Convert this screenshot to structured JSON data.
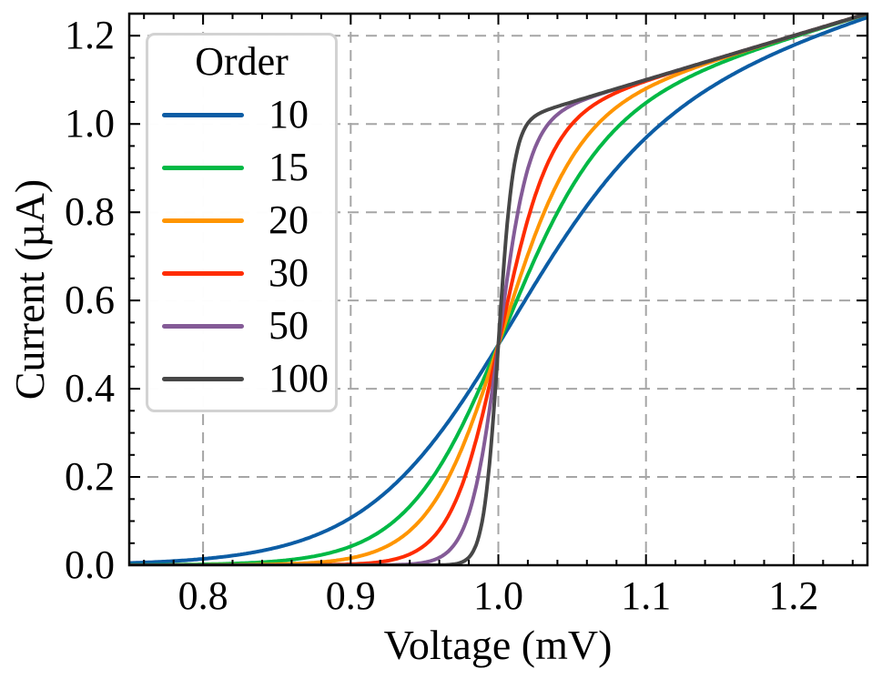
{
  "chart_data": {
    "type": "line",
    "title": "",
    "xlabel": "Voltage (mV)",
    "ylabel": "Current (µA)",
    "xlim": [
      0.75,
      1.25
    ],
    "ylim": [
      0,
      1.25
    ],
    "x_ticks": {
      "values": [
        0.8,
        0.9,
        1.0,
        1.1,
        1.2
      ],
      "labels": [
        "0.8",
        "0.9",
        "1.0",
        "1.1",
        "1.2"
      ]
    },
    "y_ticks": {
      "values": [
        0,
        0.2,
        0.4,
        0.6,
        0.8,
        1.0,
        1.2
      ],
      "labels": [
        "0.0",
        "0.2",
        "0.4",
        "0.6",
        "0.8",
        "1.0",
        "1.2"
      ]
    },
    "x_minor_step": 0.02,
    "y_minor_step": 0.05,
    "grid": {
      "visible": true,
      "style": "dashed",
      "color": "#a6a6a6",
      "dash": [
        12,
        8
      ],
      "width": 2
    },
    "spine_color": "#000000",
    "tick_direction": "in",
    "ticks_all_sides": true,
    "line_width": 4,
    "legend": {
      "title": "Order",
      "position": "upper left"
    },
    "model": "I(V) = V * (1 + tanh(order*(V-1))) / 2",
    "series": [
      {
        "name": "10",
        "order": 10,
        "color": "#0C5DA5",
        "points": [
          [
            0.75,
            0.005
          ],
          [
            0.775,
            0.0085
          ],
          [
            0.8,
            0.0144
          ],
          [
            0.825,
            0.0242
          ],
          [
            0.85,
            0.0403
          ],
          [
            0.875,
            0.0664
          ],
          [
            0.9,
            0.1073
          ],
          [
            0.925,
            0.1688
          ],
          [
            0.95,
            0.2555
          ],
          [
            0.975,
            0.3681
          ],
          [
            1.0,
            0.5
          ],
          [
            1.025,
            0.638
          ],
          [
            1.05,
            0.7676
          ],
          [
            1.075,
            0.8789
          ],
          [
            1.1,
            0.9689
          ],
          [
            1.125,
            1.0397
          ],
          [
            1.15,
            1.0954
          ],
          [
            1.175,
            1.1406
          ],
          [
            1.2,
            1.1784
          ],
          [
            1.225,
            1.2115
          ],
          [
            1.25,
            1.2416
          ]
        ]
      },
      {
        "name": "15",
        "order": 15,
        "color": "#00B945",
        "points": [
          [
            0.75,
            0.0005
          ],
          [
            0.8,
            0.002
          ],
          [
            0.825,
            0.0044
          ],
          [
            0.85,
            0.0094
          ],
          [
            0.875,
            0.0201
          ],
          [
            0.9,
            0.0427
          ],
          [
            0.925,
            0.0882
          ],
          [
            0.95,
            0.1733
          ],
          [
            0.975,
            0.3128
          ],
          [
            1.0,
            0.5
          ],
          [
            1.025,
            0.6962
          ],
          [
            1.05,
            0.8584
          ],
          [
            1.075,
            0.9725
          ],
          [
            1.1,
            1.0478
          ],
          [
            1.125,
            1.0991
          ],
          [
            1.15,
            1.1374
          ],
          [
            1.175,
            1.1688
          ],
          [
            1.2,
            1.1971
          ],
          [
            1.225,
            1.2237
          ],
          [
            1.25,
            1.2491
          ]
        ]
      },
      {
        "name": "20",
        "order": 20,
        "color": "#FF9500",
        "points": [
          [
            0.75,
            0.0
          ],
          [
            0.8,
            0.0003
          ],
          [
            0.85,
            0.0021
          ],
          [
            0.875,
            0.0059
          ],
          [
            0.9,
            0.0162
          ],
          [
            0.925,
            0.0439
          ],
          [
            0.95,
            0.1132
          ],
          [
            0.975,
            0.2622
          ],
          [
            1.0,
            0.5
          ],
          [
            1.025,
            0.7493
          ],
          [
            1.05,
            0.9248
          ],
          [
            1.075,
            1.024
          ],
          [
            1.1,
            1.08
          ],
          [
            1.125,
            1.1175
          ],
          [
            1.15,
            1.1472
          ],
          [
            1.175,
            1.1739
          ],
          [
            1.2,
            1.1996
          ],
          [
            1.25,
            1.25
          ]
        ]
      },
      {
        "name": "30",
        "order": 30,
        "color": "#FF2C00",
        "points": [
          [
            0.75,
            0.0
          ],
          [
            0.85,
            0.0002
          ],
          [
            0.875,
            0.0006
          ],
          [
            0.9,
            0.0022
          ],
          [
            0.9125,
            0.0049
          ],
          [
            0.925,
            0.0102
          ],
          [
            0.9375,
            0.0216
          ],
          [
            0.95,
            0.0451
          ],
          [
            0.9625,
            0.0918
          ],
          [
            0.975,
            0.1779
          ],
          [
            0.9875,
            0.3168
          ],
          [
            1.0,
            0.5
          ],
          [
            1.0125,
            0.6877
          ],
          [
            1.025,
            0.838
          ],
          [
            1.0375,
            0.9386
          ],
          [
            1.05,
            1.0002
          ],
          [
            1.0625,
            1.0381
          ],
          [
            1.075,
            1.0632
          ],
          [
            1.1,
            1.0973
          ],
          [
            1.15,
            1.1499
          ],
          [
            1.2,
            1.2
          ],
          [
            1.25,
            1.25
          ]
        ]
      },
      {
        "name": "50",
        "order": 50,
        "color": "#845B97",
        "points": [
          [
            0.75,
            0.0
          ],
          [
            0.9,
            0.0001
          ],
          [
            0.92,
            0.0003
          ],
          [
            0.93,
            0.0008
          ],
          [
            0.94,
            0.0023
          ],
          [
            0.95,
            0.0064
          ],
          [
            0.96,
            0.0173
          ],
          [
            0.97,
            0.046
          ],
          [
            0.98,
            0.1168
          ],
          [
            0.99,
            0.2663
          ],
          [
            1.0,
            0.5
          ],
          [
            1.01,
            0.7384
          ],
          [
            1.02,
            0.8984
          ],
          [
            1.03,
            0.9811
          ],
          [
            1.04,
            1.0213
          ],
          [
            1.05,
            1.043
          ],
          [
            1.06,
            1.0574
          ],
          [
            1.08,
            1.0796
          ],
          [
            1.1,
            1.1
          ],
          [
            1.15,
            1.15
          ],
          [
            1.2,
            1.2
          ],
          [
            1.25,
            1.25
          ]
        ]
      },
      {
        "name": "100",
        "order": 100,
        "color": "#474747",
        "points": [
          [
            0.75,
            0.0
          ],
          [
            0.94,
            0.0
          ],
          [
            0.96,
            0.0003
          ],
          [
            0.965,
            0.0009
          ],
          [
            0.97,
            0.0024
          ],
          [
            0.975,
            0.0065
          ],
          [
            0.98,
            0.0176
          ],
          [
            0.985,
            0.0467
          ],
          [
            0.99,
            0.118
          ],
          [
            0.995,
            0.2676
          ],
          [
            1.0,
            0.5
          ],
          [
            1.005,
            0.7347
          ],
          [
            1.01,
            0.8896
          ],
          [
            1.015,
            0.9668
          ],
          [
            1.02,
            1.0016
          ],
          [
            1.025,
            1.0181
          ],
          [
            1.03,
            1.0275
          ],
          [
            1.04,
            1.0396
          ],
          [
            1.05,
            1.0499
          ],
          [
            1.1,
            1.1
          ],
          [
            1.15,
            1.15
          ],
          [
            1.2,
            1.2
          ],
          [
            1.25,
            1.25
          ]
        ]
      }
    ]
  }
}
